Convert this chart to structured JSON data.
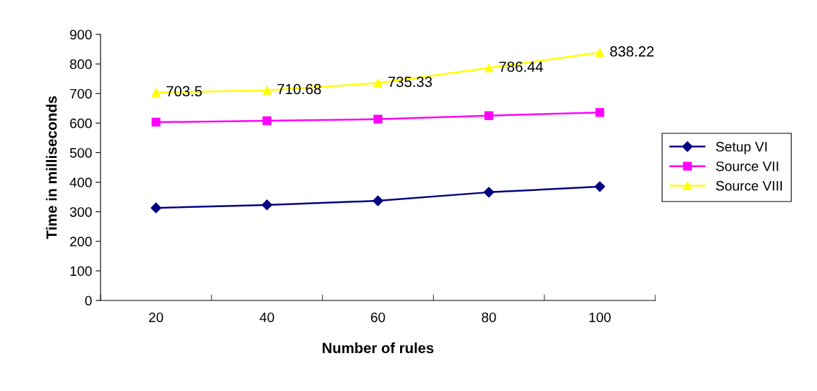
{
  "chart_data": {
    "type": "line",
    "xlabel": "Number of rules",
    "ylabel": "Time in milliseconds",
    "categories": [
      "20",
      "40",
      "60",
      "80",
      "100"
    ],
    "ylim": [
      0,
      900
    ],
    "yticks": [
      0,
      100,
      200,
      300,
      400,
      500,
      600,
      700,
      800,
      900
    ],
    "grid": false,
    "legend": "right",
    "series": [
      {
        "name": "Setup VI",
        "color": "#000080",
        "marker": "diamond",
        "values": [
          313,
          323,
          337,
          366,
          385
        ]
      },
      {
        "name": "Source VII",
        "color": "#ff00ff",
        "marker": "square",
        "values": [
          603,
          608,
          613,
          625,
          636
        ]
      },
      {
        "name": "Source VIII",
        "color": "#ffff00",
        "marker": "triangle",
        "values": [
          703.5,
          710.68,
          735.33,
          786.44,
          838.22
        ],
        "value_labels": [
          "703.5",
          "710.68",
          "735.33",
          "786.44",
          "838.22"
        ]
      }
    ]
  }
}
